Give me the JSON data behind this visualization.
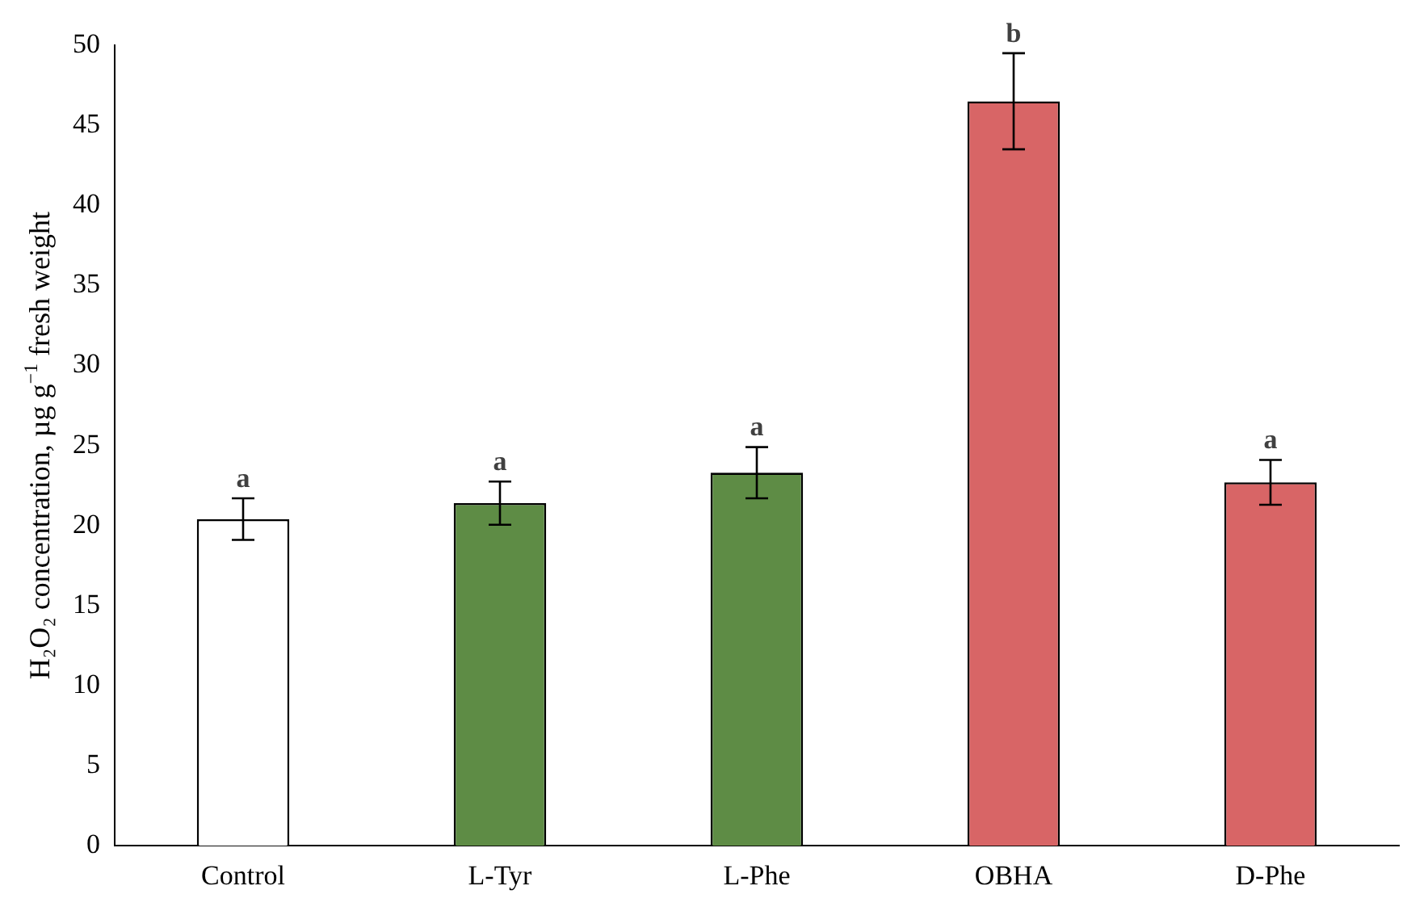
{
  "chart_data": {
    "type": "bar",
    "ylabel": "H₂O₂ concentration, µg g$^{−1}$ fresh weight",
    "categories": [
      "Control",
      "L-Tyr",
      "L-Phe",
      "OBHA",
      "D-Phe"
    ],
    "values": [
      20.4,
      21.4,
      23.3,
      46.5,
      22.7
    ],
    "errors": [
      1.3,
      1.35,
      1.6,
      3.0,
      1.4
    ],
    "colors": [
      "#ffffff",
      "#5e8c45",
      "#5e8c45",
      "#d86566",
      "#d86566"
    ],
    "ylim": [
      0,
      50
    ],
    "yticks": [
      0,
      5,
      10,
      15,
      20,
      25,
      30,
      35,
      40,
      45,
      50
    ],
    "grid": false,
    "legend": false,
    "annotations": [
      {
        "text": "a",
        "x": "Control",
        "y": 21.7
      },
      {
        "text": "a",
        "x": "L-Tyr",
        "y": 22.75
      },
      {
        "text": "a",
        "x": "L-Phe",
        "y": 24.9
      },
      {
        "text": "b",
        "x": "OBHA",
        "y": 49.5
      },
      {
        "text": "a",
        "x": "D-Phe",
        "y": 24.1
      }
    ]
  }
}
